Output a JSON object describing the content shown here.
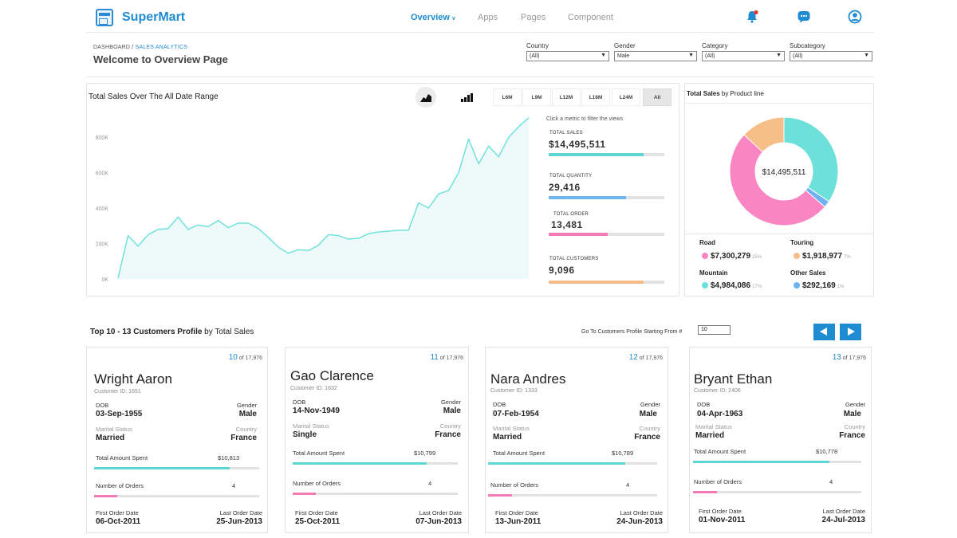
{
  "header": {
    "app_name": "SuperMart",
    "nav": [
      "Overview",
      "Apps",
      "Pages",
      "Component"
    ],
    "nav_active_caret": "v"
  },
  "welcome": {
    "breadcrumb_root": "DASHBOARD /",
    "breadcrumb_current": "SALES ANALYTICS",
    "title": "Welcome to Overview Page"
  },
  "filters": [
    {
      "label": "Country",
      "value": "(All)"
    },
    {
      "label": "Gender",
      "value": "Male"
    },
    {
      "label": "Category",
      "value": "(All)"
    },
    {
      "label": "Subcategory",
      "value": "(All)"
    }
  ],
  "sales_chart": {
    "title": "Total Sales Over The All Date Range",
    "ranges": [
      "L6M",
      "L9M",
      "L12M",
      "L18M",
      "L24M",
      "All"
    ],
    "active_range": "All",
    "ytick_labels": [
      "800K",
      "600K",
      "400K",
      "200K",
      "0K"
    ]
  },
  "chart_data": {
    "type": "area",
    "title": "Total Sales Over The All Date Range",
    "xlabel": "",
    "ylabel": "",
    "ylim": [
      0,
      900000
    ],
    "yticks": [
      0,
      200000,
      400000,
      600000,
      800000
    ],
    "series": [
      {
        "color": "#70e1dc",
        "values": [
          5000,
          245000,
          185000,
          250000,
          280000,
          285000,
          350000,
          280000,
          305000,
          295000,
          330000,
          290000,
          315000,
          315000,
          285000,
          235000,
          180000,
          145000,
          165000,
          160000,
          190000,
          250000,
          245000,
          225000,
          230000,
          255000,
          265000,
          270000,
          275000,
          275000,
          430000,
          400000,
          480000,
          500000,
          600000,
          790000,
          650000,
          750000,
          690000,
          800000,
          860000,
          910000
        ]
      }
    ]
  },
  "metrics": {
    "hint": "Click a metric to filter the views",
    "items": [
      {
        "label": "TOTAL SALES",
        "value": "$14,495,511",
        "fill": 0.82,
        "color": "#5cd7d2"
      },
      {
        "label": "TOTAL QUANTITY",
        "value": "29,416",
        "fill": 0.67,
        "color": "#6eb7f2"
      },
      {
        "label": "TOTAL ORDER",
        "value": "13,481",
        "fill": 0.51,
        "color": "#f27ab5"
      },
      {
        "label": "TOTAL CUSTOMERS",
        "value": "9,096",
        "fill": 0.82,
        "color": "#f6bb85"
      }
    ]
  },
  "product_line": {
    "title_bold": "Total Sales",
    "title_rest": " by Product line",
    "center_value": "$14,495,511",
    "items": [
      {
        "name": "Road",
        "value": "$7,300,279",
        "pct": "25%",
        "share": 0.504,
        "color": "#f985c2"
      },
      {
        "name": "Touring",
        "value": "$1,918,977",
        "pct": "7%",
        "share": 0.132,
        "color": "#f7bf88"
      },
      {
        "name": "Mountain",
        "value": "$4,984,086",
        "pct": "17%",
        "share": 0.344,
        "color": "#6de0da"
      },
      {
        "name": "Other Sales",
        "value": "$292,169",
        "pct": "1%",
        "share": 0.02,
        "color": "#6fb2f3"
      }
    ]
  },
  "customers": {
    "title_bold": "Top 10 - 13 Customers Profile",
    "title_rest": " by Total Sales",
    "goto_label": "Go To Customers Profile Starting From #",
    "goto_value": "10",
    "labels": {
      "dob": "DOB",
      "gender": "Gender",
      "marital": "Marital Status",
      "country": "Country",
      "total_spent": "Total Amount Spent",
      "orders": "Number of Orders",
      "first_order": "First Order Date",
      "last_order": "Last Order Date"
    },
    "cards": [
      {
        "rank": "10",
        "of": " of 17,976",
        "name": "Wright Aaron",
        "customer_id": "Customer ID: 1651",
        "dob": "03-Sep-1955",
        "gender": "Male",
        "marital": "Married",
        "country": "France",
        "spent": "$10,813",
        "spent_fill": 0.82,
        "orders": "4",
        "orders_fill": 0.14,
        "first_order": "06-Oct-2011",
        "last_order": "25-Jun-2013"
      },
      {
        "rank": "11",
        "of": " of 17,976",
        "name": "Gao Clarence",
        "customer_id": "Customer ID: 1632",
        "dob": "14-Nov-1949",
        "gender": "Male",
        "marital": "Single",
        "country": "France",
        "spent": "$10,799",
        "spent_fill": 0.81,
        "orders": "4",
        "orders_fill": 0.14,
        "first_order": "25-Oct-2011",
        "last_order": "07-Jun-2013"
      },
      {
        "rank": "12",
        "of": " of 17,976",
        "name": "Nara Andres",
        "customer_id": "Customer ID: 1333",
        "dob": "07-Feb-1954",
        "gender": "Male",
        "marital": "Married",
        "country": "France",
        "spent": "$10,789",
        "spent_fill": 0.81,
        "orders": "4",
        "orders_fill": 0.14,
        "first_order": "13-Jun-2011",
        "last_order": "24-Jun-2013"
      },
      {
        "rank": "13",
        "of": " of 17,976",
        "name": "Bryant Ethan",
        "customer_id": "Customer ID: 2406",
        "dob": "04-Apr-1963",
        "gender": "Male",
        "marital": "Married",
        "country": "France",
        "spent": "$10,778",
        "spent_fill": 0.81,
        "orders": "4",
        "orders_fill": 0.14,
        "first_order": "01-Nov-2011",
        "last_order": "24-Jul-2013"
      }
    ]
  }
}
